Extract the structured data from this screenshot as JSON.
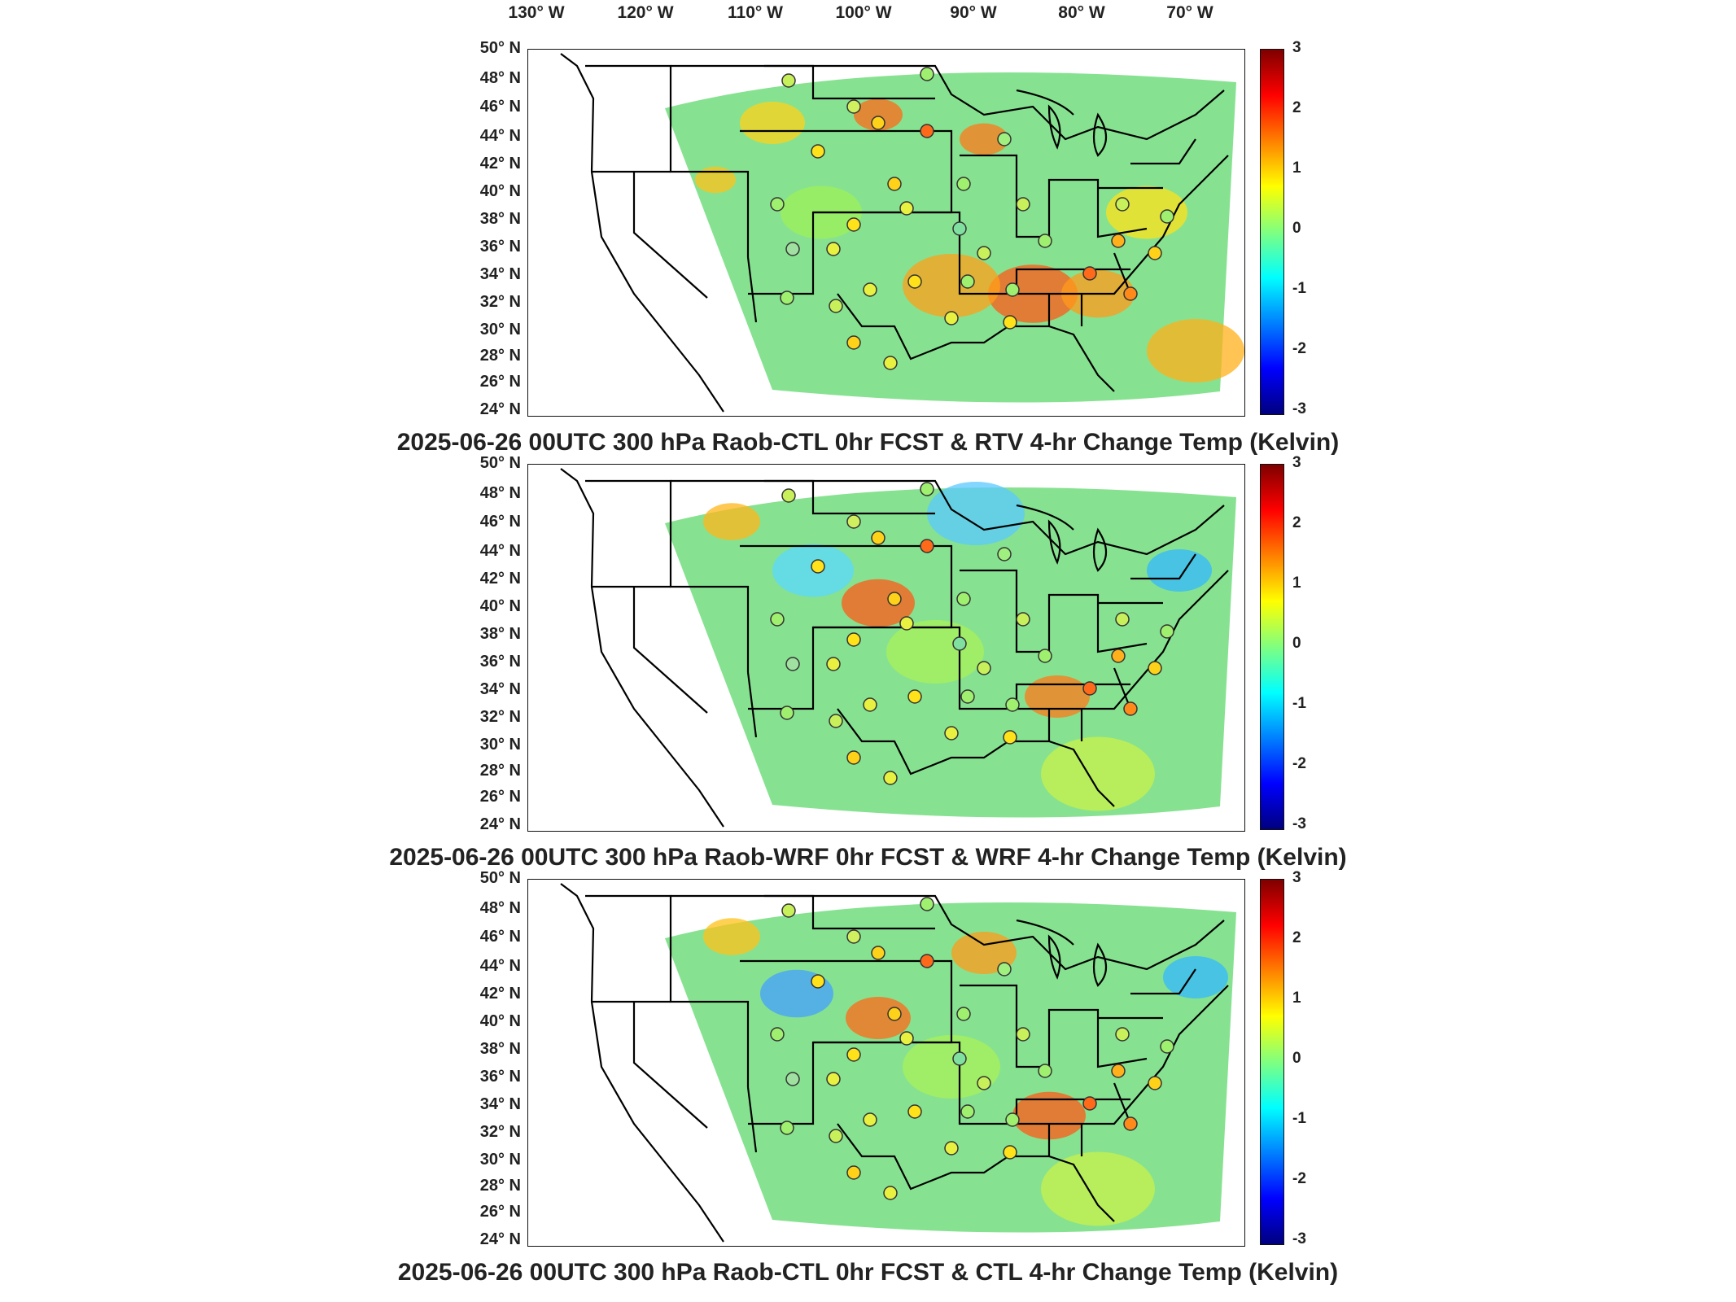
{
  "longitude_labels": [
    "130° W",
    "120° W",
    "110° W",
    "100° W",
    "90° W",
    "80° W",
    "70° W"
  ],
  "latitude_labels": [
    "50° N",
    "48° N",
    "46° N",
    "44° N",
    "42° N",
    "40° N",
    "38° N",
    "36° N",
    "34° N",
    "32° N",
    "30° N",
    "28° N",
    "26° N",
    "24° N"
  ],
  "colorbar": {
    "ticks": [
      "3",
      "2",
      "1",
      "0",
      "-1",
      "-2",
      "-3"
    ],
    "min": -3,
    "max": 3,
    "colormap": "jet"
  },
  "colors": {
    "land_outline": "#000000",
    "field_mid": "#7fe08a",
    "warm": "#ff9f1a",
    "cool": "#33b8ff"
  },
  "panels": [
    {
      "title": "2025-06-26 00UTC 300 hPa Raob-CTL 0hr FCST & RTV 4-hr Change Temp (Kelvin)"
    },
    {
      "title": "2025-06-26 00UTC 300 hPa Raob-WRF 0hr FCST & WRF 4-hr Change Temp (Kelvin)"
    },
    {
      "title": "2025-06-26 00UTC 300 hPa Raob-CTL 0hr FCST & CTL 4-hr Change Temp (Kelvin)"
    }
  ]
}
